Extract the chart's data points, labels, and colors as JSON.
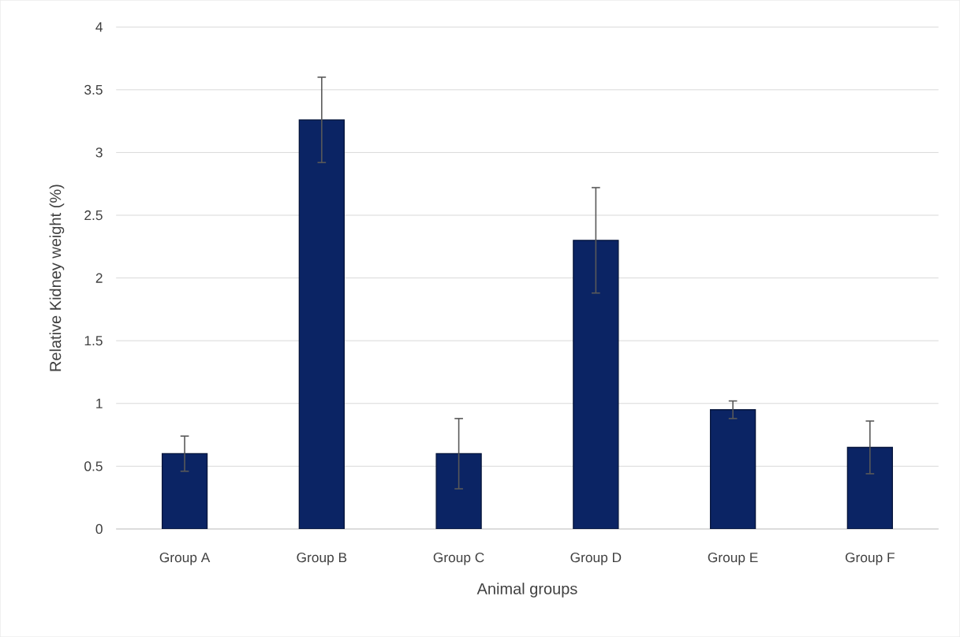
{
  "chart_data": {
    "type": "bar",
    "xlabel": "Animal groups",
    "ylabel": "Relative Kidney weight (%)",
    "categories": [
      "Group A",
      "Group B",
      "Group C",
      "Group D",
      "Group E",
      "Group F"
    ],
    "values": [
      0.6,
      3.26,
      0.6,
      2.3,
      0.95,
      0.65
    ],
    "errors": [
      0.14,
      0.34,
      0.28,
      0.42,
      0.07,
      0.21
    ],
    "color": "#0b2464",
    "ylim": [
      0,
      4
    ],
    "yticks": [
      0,
      0.5,
      1,
      1.5,
      2,
      2.5,
      3,
      3.5,
      4
    ],
    "grid": "y"
  }
}
